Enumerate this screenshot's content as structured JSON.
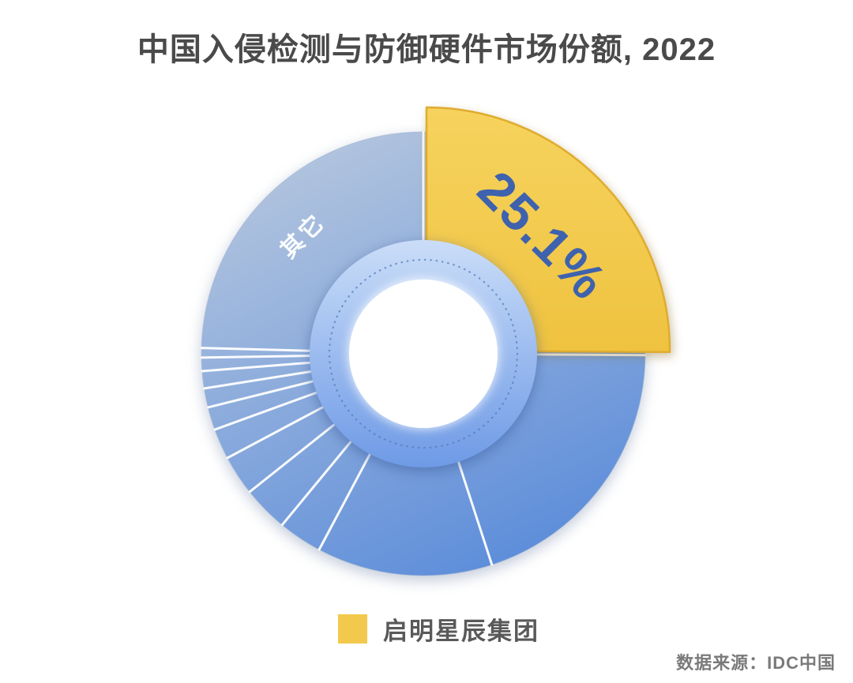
{
  "header": {
    "title": "中国入侵检测与防御硬件市场份额, 2022"
  },
  "chart_data": {
    "type": "pie",
    "donut": true,
    "title": "中国入侵检测与防御硬件市场份额, 2022",
    "series": [
      {
        "name": "启明星辰集团",
        "value": 25.1,
        "label": "25.1%",
        "color": "#F2CA51",
        "highlighted": true
      },
      {
        "name": "其它",
        "value": 74.9,
        "label": "其它",
        "color": "#8FABD6"
      }
    ],
    "highlight_start_deg": 0,
    "others_divider_angles_deg": [
      90.36,
      162,
      208,
      219.5,
      231.5,
      242,
      250,
      256,
      261,
      265.5,
      269,
      271.5
    ],
    "legend": [
      {
        "label": "启明星辰集团",
        "color": "#F2C94C"
      }
    ],
    "source": "数据来源：IDC中国",
    "colors": {
      "pie_gradient_top": "#B5C6DE",
      "pie_gradient_bottom": "#5B8CDA",
      "ring_gradient_top": "#CADDF8",
      "ring_gradient_bottom": "#6E9AE6",
      "highlight_fill": "#F2CA51",
      "highlight_stroke": "#DFAC2E",
      "highlight_label_color": "#3E62AD",
      "others_label_color": "#FFFFFF",
      "dotted_ring_color": "#4E78BC",
      "divider_color": "#FFFFFF"
    }
  },
  "footer": {
    "source": "数据来源：IDC中国"
  }
}
